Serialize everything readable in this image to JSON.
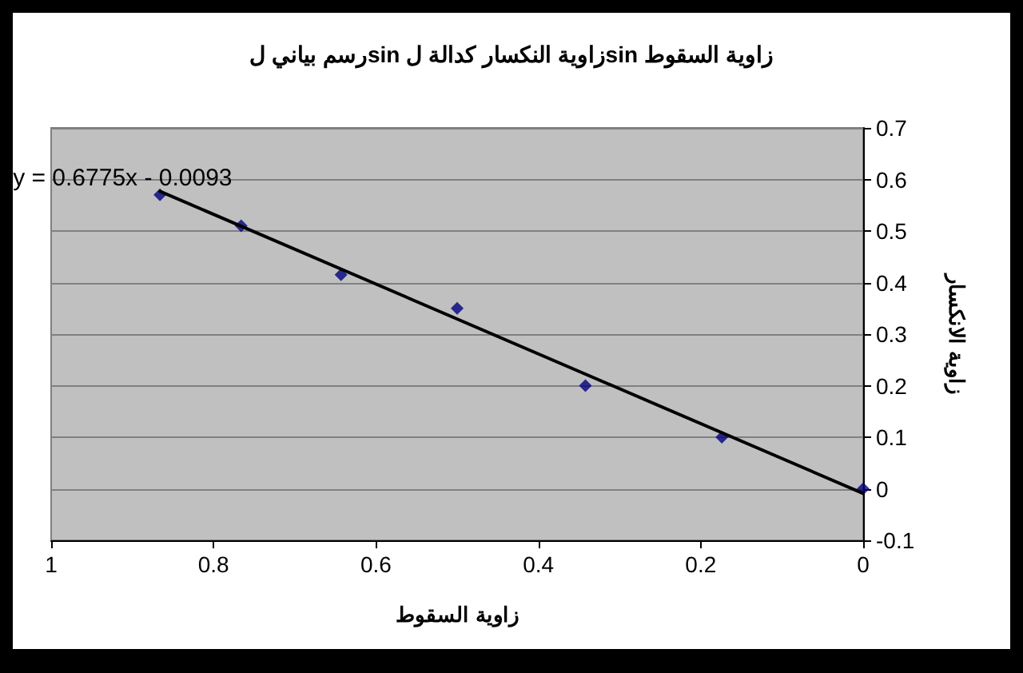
{
  "chart_data": {
    "type": "scatter",
    "title": "رسم بياني لsin زاوية النكسار كدالة لsin زاوية السقوط",
    "xlabel": "زاوية السقوط",
    "ylabel": "زاوية الانكسار",
    "annotations": [
      {
        "text": "y = 0.6775x - 0.0093",
        "x": 0.866,
        "y": 0.577
      }
    ],
    "series": [
      {
        "color": "#000080",
        "marker": "diamond",
        "x": [
          0.866,
          0.766,
          0.643,
          0.5,
          0.342,
          0.174,
          0
        ],
        "values": [
          0.57,
          0.51,
          0.415,
          0.35,
          0.2,
          0.1,
          0
        ]
      },
      {
        "type": "line",
        "color": "#000000",
        "marker": "none",
        "x": [
          0.866,
          0
        ],
        "values": [
          0.577,
          -0.009
        ]
      }
    ],
    "xlim": [
      1,
      0
    ],
    "xticks": [
      1,
      0.8,
      0.6,
      0.4,
      0.2,
      0
    ],
    "ylim": [
      -0.1,
      0.7
    ],
    "yticks": [
      -0.1,
      0,
      0.1,
      0.2,
      0.3,
      0.4,
      0.5,
      0.6,
      0.7
    ],
    "grid": "y"
  }
}
